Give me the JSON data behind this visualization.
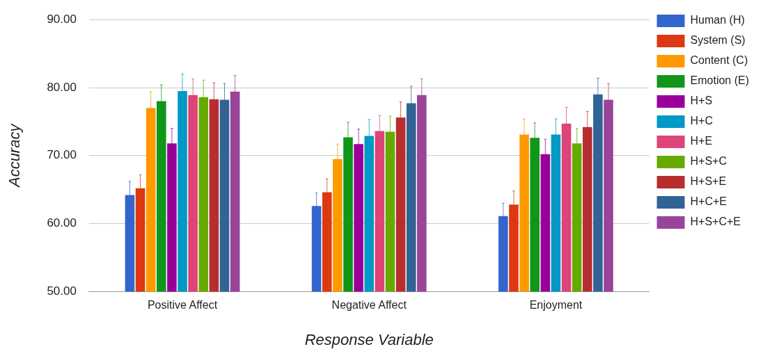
{
  "chart_data": {
    "type": "bar",
    "xlabel": "Response Variable",
    "ylabel": "Accuracy",
    "categories": [
      "Positive Affect",
      "Negative Affect",
      "Enjoyment"
    ],
    "ylim": [
      50,
      90
    ],
    "yticks": [
      {
        "value": 50,
        "label": "50.00"
      },
      {
        "value": 60,
        "label": "60.00"
      },
      {
        "value": 70,
        "label": "70.00"
      },
      {
        "value": 80,
        "label": "80.00"
      },
      {
        "value": 90,
        "label": "90.00"
      }
    ],
    "grid": "y",
    "legend": "right",
    "series": [
      {
        "name": "Human (H)",
        "color": "#3366cc",
        "values": [
          64.2,
          62.6,
          61.1
        ],
        "errors": [
          2.0,
          1.9,
          1.9
        ]
      },
      {
        "name": "System (S)",
        "color": "#dc3912",
        "values": [
          65.2,
          64.6,
          62.8
        ],
        "errors": [
          2.0,
          2.0,
          2.0
        ]
      },
      {
        "name": "Content (C)",
        "color": "#ff9900",
        "values": [
          77.0,
          69.5,
          73.1
        ],
        "errors": [
          2.4,
          2.2,
          2.3
        ]
      },
      {
        "name": "Emotion (E)",
        "color": "#109618",
        "values": [
          78.0,
          72.7,
          72.6
        ],
        "errors": [
          2.4,
          2.2,
          2.2
        ]
      },
      {
        "name": "H+S",
        "color": "#990099",
        "values": [
          71.8,
          71.7,
          70.2
        ],
        "errors": [
          2.2,
          2.2,
          2.2
        ]
      },
      {
        "name": "H+C",
        "color": "#0099c6",
        "values": [
          79.5,
          72.9,
          73.1
        ],
        "errors": [
          2.5,
          2.4,
          2.3
        ]
      },
      {
        "name": "H+E",
        "color": "#dd4477",
        "values": [
          78.9,
          73.6,
          74.7
        ],
        "errors": [
          2.4,
          2.3,
          2.4
        ]
      },
      {
        "name": "H+S+C",
        "color": "#66aa00",
        "values": [
          78.6,
          73.5,
          71.8
        ],
        "errors": [
          2.5,
          2.3,
          2.2
        ]
      },
      {
        "name": "H+S+E",
        "color": "#b82e2e",
        "values": [
          78.3,
          75.6,
          74.2
        ],
        "errors": [
          2.4,
          2.3,
          2.3
        ]
      },
      {
        "name": "H+C+E",
        "color": "#316395",
        "values": [
          78.2,
          77.7,
          79.0
        ],
        "errors": [
          2.4,
          2.5,
          2.4
        ]
      },
      {
        "name": "H+S+C+E",
        "color": "#994499",
        "values": [
          79.4,
          78.9,
          78.2
        ],
        "errors": [
          2.4,
          2.4,
          2.4
        ]
      }
    ]
  }
}
